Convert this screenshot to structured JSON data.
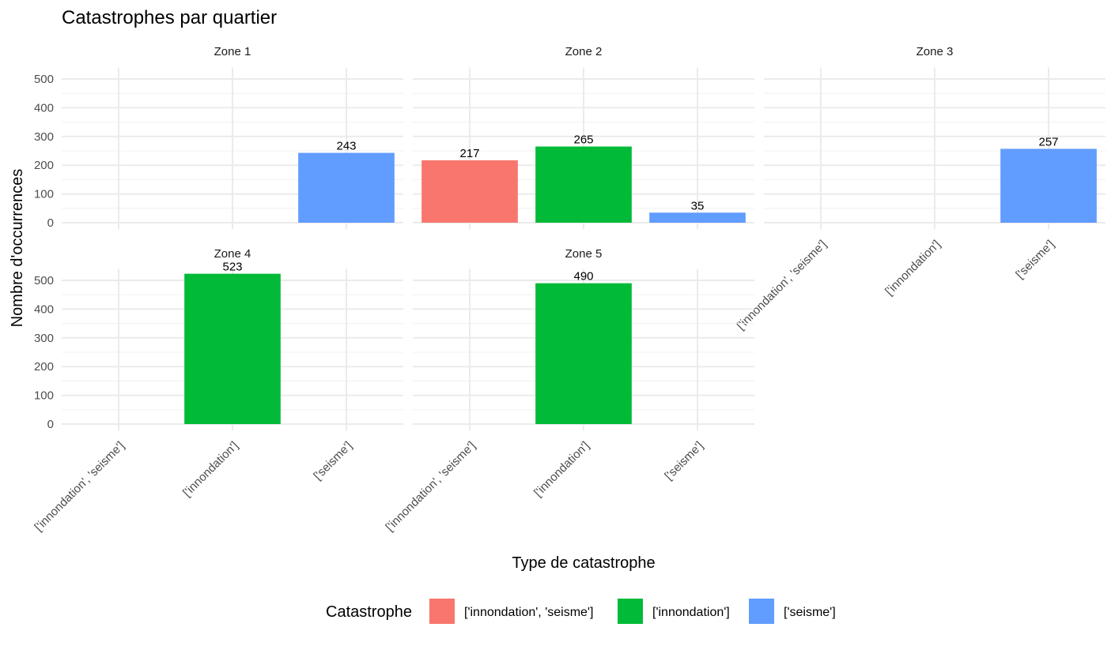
{
  "chart_data": {
    "type": "bar",
    "title": "Catastrophes par quartier",
    "xlabel": "Type de catastrophe",
    "ylabel": "Nombre d'occurrences",
    "ylim": [
      0,
      540
    ],
    "yticks": [
      0,
      100,
      200,
      300,
      400,
      500
    ],
    "grid": true,
    "legend_position": "bottom",
    "legend_title": "Catastrophe",
    "categories": [
      "['innondation', 'seisme']",
      "['innondation']",
      "['seisme']"
    ],
    "colors": [
      "#F8766D",
      "#00BA38",
      "#619CFF"
    ],
    "facets": [
      {
        "name": "Zone 1",
        "values": [
          null,
          null,
          243
        ]
      },
      {
        "name": "Zone 2",
        "values": [
          217,
          265,
          35
        ]
      },
      {
        "name": "Zone 3",
        "values": [
          null,
          null,
          257
        ]
      },
      {
        "name": "Zone 4",
        "values": [
          null,
          523,
          null
        ]
      },
      {
        "name": "Zone 5",
        "values": [
          null,
          490,
          null
        ]
      }
    ]
  }
}
